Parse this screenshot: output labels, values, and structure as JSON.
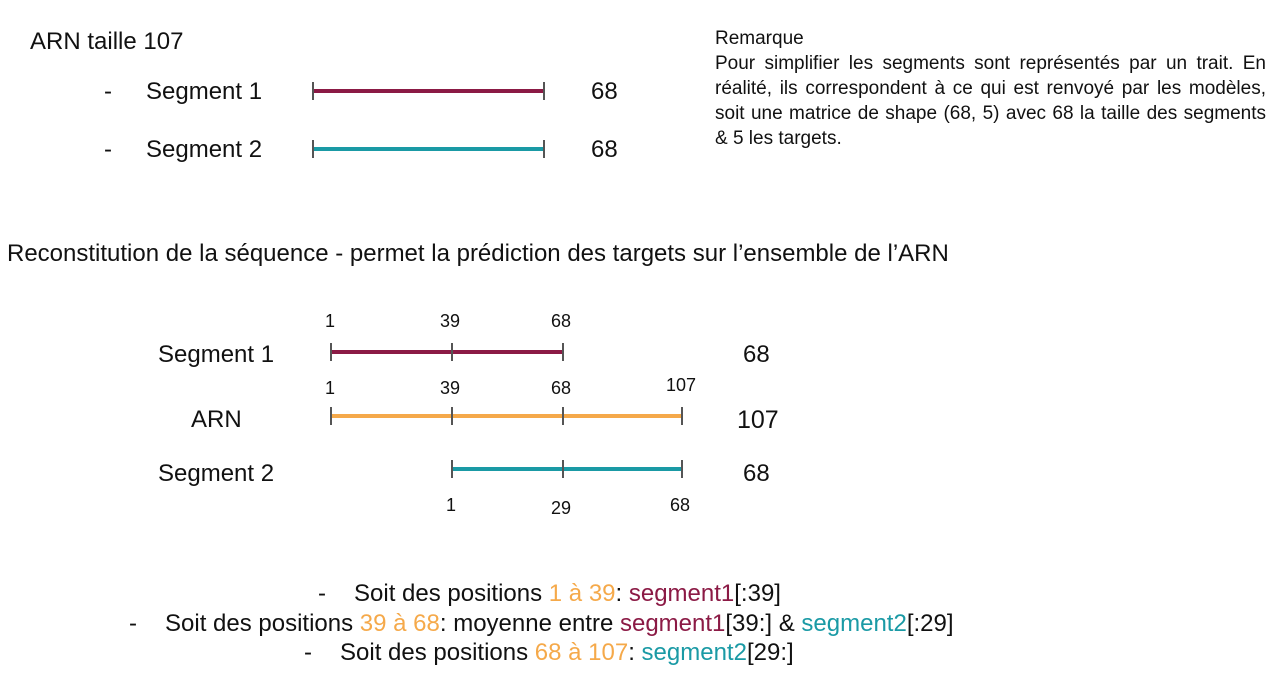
{
  "colors": {
    "segment1": "#8b1a45",
    "segment2": "#1a9aa5",
    "arn": "#f5a94a",
    "tick": "#555555",
    "text": "#111111"
  },
  "top": {
    "title": "ARN taille 107",
    "dash": "-",
    "segment1_label": "Segment 1",
    "segment1_len": "68",
    "segment2_label": "Segment 2",
    "segment2_len": "68"
  },
  "note": {
    "title": "Remarque",
    "body": "Pour simplifier les segments sont représentés par un trait. En réalité, ils correspondent à ce qui est renvoyé par les modèles, soit une matrice de shape (68, 5) avec 68 la taille des segments & 5 les targets."
  },
  "section_title": "Reconstitution de la séquence - permet la prédiction des targets sur l’ensemble de l’ARN",
  "diagram": {
    "segment1": {
      "label": "Segment 1",
      "length": "68",
      "ticks": [
        "1",
        "39",
        "68"
      ]
    },
    "arn": {
      "label": "ARN",
      "length": "107",
      "ticks": [
        "1",
        "39",
        "68",
        "107"
      ]
    },
    "segment2": {
      "label": "Segment 2",
      "length": "68",
      "ticks": [
        "1",
        "29",
        "68"
      ]
    }
  },
  "bullets": [
    {
      "dash": "-",
      "prefix": "Soit des positions ",
      "range": "1 à 39",
      "sep": ": ",
      "parts": [
        {
          "text": "segment1",
          "color": "segment1"
        },
        {
          "text": "[:39]",
          "color": "text"
        }
      ]
    },
    {
      "dash": "-",
      "prefix": "Soit des positions ",
      "range": "39 à 68",
      "sep": ": moyenne entre ",
      "parts": [
        {
          "text": "segment1",
          "color": "segment1"
        },
        {
          "text": "[39:] & ",
          "color": "text"
        },
        {
          "text": "segment2",
          "color": "segment2"
        },
        {
          "text": "[:29]",
          "color": "text"
        }
      ]
    },
    {
      "dash": "-",
      "prefix": "Soit des positions ",
      "range": "68 à 107",
      "sep": ": ",
      "parts": [
        {
          "text": "segment2",
          "color": "segment2"
        },
        {
          "text": "[29:]",
          "color": "text"
        }
      ]
    }
  ]
}
